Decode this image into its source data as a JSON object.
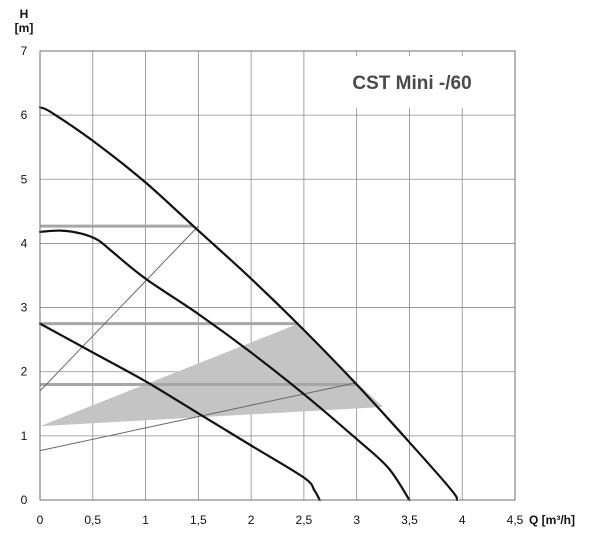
{
  "chart_data": {
    "type": "line",
    "title": "CST Mini -/60",
    "xlabel": "Q [m³/h]",
    "ylabel_line1": "H",
    "ylabel_line2": "[m]",
    "xlim": [
      0,
      4.5
    ],
    "ylim": [
      0,
      7
    ],
    "grid": true,
    "legend": "none",
    "x_ticks": [
      {
        "value": 0,
        "label": "0"
      },
      {
        "value": 0.5,
        "label": "0,5"
      },
      {
        "value": 1,
        "label": "1"
      },
      {
        "value": 1.5,
        "label": "1,5"
      },
      {
        "value": 2,
        "label": "2"
      },
      {
        "value": 2.5,
        "label": "2,5"
      },
      {
        "value": 3,
        "label": "3"
      },
      {
        "value": 3.5,
        "label": "3,5"
      },
      {
        "value": 4,
        "label": "4"
      },
      {
        "value": 4.5,
        "label": "4,5"
      }
    ],
    "y_ticks": [
      {
        "value": 0,
        "label": "0"
      },
      {
        "value": 1,
        "label": "1"
      },
      {
        "value": 2,
        "label": "2"
      },
      {
        "value": 3,
        "label": "3"
      },
      {
        "value": 4,
        "label": "4"
      },
      {
        "value": 5,
        "label": "5"
      },
      {
        "value": 6,
        "label": "6"
      },
      {
        "value": 7,
        "label": "7"
      }
    ],
    "series": [
      {
        "x": [
          0,
          0.1,
          0.5,
          1.0,
          1.5,
          2.0,
          2.5,
          3.0,
          3.5,
          3.9,
          3.95
        ],
        "y": [
          6.12,
          6.05,
          5.6,
          4.95,
          4.2,
          3.45,
          2.65,
          1.8,
          0.9,
          0.15,
          0.0
        ]
      },
      {
        "x": [
          0,
          0.2,
          0.4,
          0.55,
          0.7,
          1.0,
          1.5,
          2.0,
          2.5,
          3.0,
          3.3,
          3.5
        ],
        "y": [
          4.18,
          4.2,
          4.15,
          4.05,
          3.85,
          3.45,
          2.9,
          2.3,
          1.65,
          0.95,
          0.5,
          0.0
        ]
      },
      {
        "x": [
          0,
          0.5,
          1.0,
          1.5,
          2.0,
          2.5,
          2.6,
          2.65
        ],
        "y": [
          2.75,
          2.3,
          1.85,
          1.35,
          0.85,
          0.35,
          0.15,
          0.0
        ]
      }
    ],
    "setpoint_lines": [
      {
        "x": [
          0,
          1.45
        ],
        "y": [
          4.27,
          4.27
        ]
      },
      {
        "x": [
          0,
          2.45
        ],
        "y": [
          2.75,
          2.75
        ]
      },
      {
        "x": [
          0,
          3.0
        ],
        "y": [
          1.8,
          1.8
        ]
      }
    ],
    "control_lines": [
      {
        "x": [
          0,
          1.5
        ],
        "y": [
          1.7,
          4.27
        ]
      },
      {
        "x": [
          0,
          3.0
        ],
        "y": [
          0.77,
          1.83
        ]
      }
    ],
    "shaded_region": {
      "x": [
        0.0,
        2.45,
        3.0,
        3.25,
        0.0
      ],
      "y": [
        1.15,
        2.75,
        1.83,
        1.45,
        1.15
      ]
    },
    "colors": {
      "curve": "#111111",
      "grid": "#8c8c8c",
      "setpoint": "#a6a6a6",
      "control": "#6a6a6a",
      "shade": "#c4c4c4",
      "title_box": "#ffffff"
    }
  }
}
